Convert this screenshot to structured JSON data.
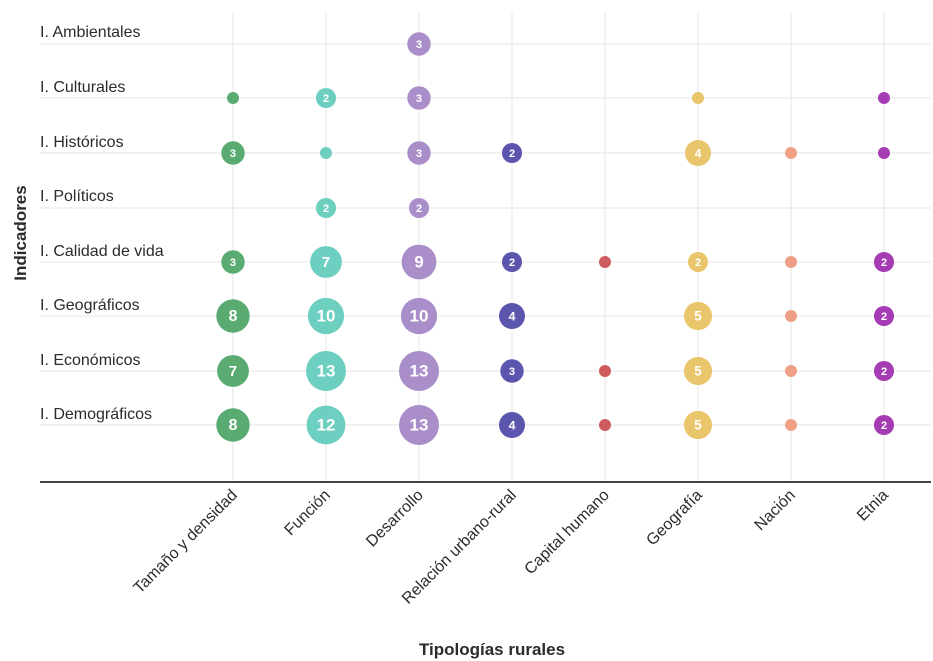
{
  "chart_data": {
    "type": "scatter",
    "xlabel": "Tipologías rurales",
    "ylabel": "Indicadores",
    "categories": [
      "Tamaño y densidad",
      "Función",
      "Desarrollo",
      "Relación urbano-rural",
      "Capital humano",
      "Geografía",
      "Nación",
      "Etnia"
    ],
    "rows": [
      "I. Ambientales",
      "I. Culturales",
      "I. Históricos",
      "I. Políticos",
      "I. Calidad de vida",
      "I. Geográficos",
      "I. Económicos",
      "I. Demográficos"
    ],
    "colors": [
      "#5aab72",
      "#6dcfbf",
      "#a98ec9",
      "#5b55ad",
      "#cf5c5c",
      "#e9c66c",
      "#ef9f86",
      "#a53cb3"
    ],
    "grid": true,
    "points": [
      {
        "x": "Desarrollo",
        "y": "I. Ambientales",
        "value": 3,
        "label": "3"
      },
      {
        "x": "Tamaño y densidad",
        "y": "I. Culturales",
        "value": 1,
        "label": ""
      },
      {
        "x": "Función",
        "y": "I. Culturales",
        "value": 2,
        "label": "2"
      },
      {
        "x": "Desarrollo",
        "y": "I. Culturales",
        "value": 3,
        "label": "3"
      },
      {
        "x": "Geografía",
        "y": "I. Culturales",
        "value": 1,
        "label": ""
      },
      {
        "x": "Etnia",
        "y": "I. Culturales",
        "value": 1,
        "label": ""
      },
      {
        "x": "Tamaño y densidad",
        "y": "I. Históricos",
        "value": 3,
        "label": "3"
      },
      {
        "x": "Función",
        "y": "I. Históricos",
        "value": 1,
        "label": ""
      },
      {
        "x": "Desarrollo",
        "y": "I. Históricos",
        "value": 3,
        "label": "3"
      },
      {
        "x": "Relación urbano-rural",
        "y": "I. Históricos",
        "value": 2,
        "label": "2"
      },
      {
        "x": "Geografía",
        "y": "I. Históricos",
        "value": 4,
        "label": "4"
      },
      {
        "x": "Nación",
        "y": "I. Históricos",
        "value": 1,
        "label": ""
      },
      {
        "x": "Etnia",
        "y": "I. Históricos",
        "value": 1,
        "label": ""
      },
      {
        "x": "Función",
        "y": "I. Políticos",
        "value": 2,
        "label": "2"
      },
      {
        "x": "Desarrollo",
        "y": "I. Políticos",
        "value": 2,
        "label": "2"
      },
      {
        "x": "Tamaño y densidad",
        "y": "I. Calidad de vida",
        "value": 3,
        "label": "3"
      },
      {
        "x": "Función",
        "y": "I. Calidad de vida",
        "value": 7,
        "label": "7"
      },
      {
        "x": "Desarrollo",
        "y": "I. Calidad de vida",
        "value": 9,
        "label": "9"
      },
      {
        "x": "Relación urbano-rural",
        "y": "I. Calidad de vida",
        "value": 2,
        "label": "2"
      },
      {
        "x": "Capital humano",
        "y": "I. Calidad de vida",
        "value": 1,
        "label": ""
      },
      {
        "x": "Geografía",
        "y": "I. Calidad de vida",
        "value": 2,
        "label": "2"
      },
      {
        "x": "Nación",
        "y": "I. Calidad de vida",
        "value": 1,
        "label": ""
      },
      {
        "x": "Etnia",
        "y": "I. Calidad de vida",
        "value": 2,
        "label": "2"
      },
      {
        "x": "Tamaño y densidad",
        "y": "I. Geográficos",
        "value": 8,
        "label": "8"
      },
      {
        "x": "Función",
        "y": "I. Geográficos",
        "value": 10,
        "label": "10"
      },
      {
        "x": "Desarrollo",
        "y": "I. Geográficos",
        "value": 10,
        "label": "10"
      },
      {
        "x": "Relación urbano-rural",
        "y": "I. Geográficos",
        "value": 4,
        "label": "4"
      },
      {
        "x": "Geografía",
        "y": "I. Geográficos",
        "value": 5,
        "label": "5"
      },
      {
        "x": "Nación",
        "y": "I. Geográficos",
        "value": 1,
        "label": ""
      },
      {
        "x": "Etnia",
        "y": "I. Geográficos",
        "value": 2,
        "label": "2"
      },
      {
        "x": "Tamaño y densidad",
        "y": "I. Económicos",
        "value": 7,
        "label": "7"
      },
      {
        "x": "Función",
        "y": "I. Económicos",
        "value": 13,
        "label": "13"
      },
      {
        "x": "Desarrollo",
        "y": "I. Económicos",
        "value": 13,
        "label": "13"
      },
      {
        "x": "Relación urbano-rural",
        "y": "I. Económicos",
        "value": 3,
        "label": "3"
      },
      {
        "x": "Capital humano",
        "y": "I. Económicos",
        "value": 1,
        "label": ""
      },
      {
        "x": "Geografía",
        "y": "I. Económicos",
        "value": 5,
        "label": "5"
      },
      {
        "x": "Nación",
        "y": "I. Económicos",
        "value": 1,
        "label": ""
      },
      {
        "x": "Etnia",
        "y": "I. Económicos",
        "value": 2,
        "label": "2"
      },
      {
        "x": "Tamaño y densidad",
        "y": "I. Demográficos",
        "value": 8,
        "label": "8"
      },
      {
        "x": "Función",
        "y": "I. Demográficos",
        "value": 12,
        "label": "12"
      },
      {
        "x": "Desarrollo",
        "y": "I. Demográficos",
        "value": 13,
        "label": "13"
      },
      {
        "x": "Relación urbano-rural",
        "y": "I. Demográficos",
        "value": 4,
        "label": "4"
      },
      {
        "x": "Capital humano",
        "y": "I. Demográficos",
        "value": 1,
        "label": ""
      },
      {
        "x": "Geografía",
        "y": "I. Demográficos",
        "value": 5,
        "label": "5"
      },
      {
        "x": "Nación",
        "y": "I. Demográficos",
        "value": 1,
        "label": ""
      },
      {
        "x": "Etnia",
        "y": "I. Demográficos",
        "value": 2,
        "label": "2"
      }
    ]
  }
}
